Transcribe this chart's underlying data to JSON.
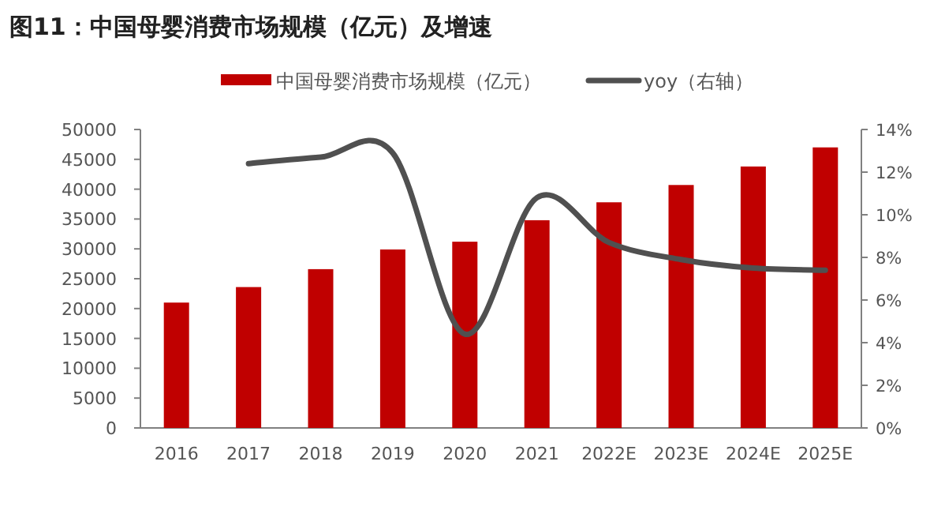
{
  "chart_data": {
    "type": "bar",
    "title": "图11：中国母婴消费市场规模（亿元）及增速",
    "categories": [
      "2016",
      "2017",
      "2018",
      "2019",
      "2020",
      "2021",
      "2022E",
      "2023E",
      "2024E",
      "2025E"
    ],
    "series": [
      {
        "name": "中国母婴消费市场规模（亿元）",
        "color": "#c00000",
        "values": [
          21000,
          23600,
          26600,
          29900,
          31200,
          34800,
          37800,
          40700,
          43800,
          47000
        ]
      },
      {
        "name": "yoy（右轴）",
        "type": "line",
        "axis": "y2",
        "color": "#505050",
        "values": [
          null,
          12.4,
          12.7,
          12.9,
          4.4,
          10.8,
          8.7,
          7.9,
          7.5,
          7.4
        ]
      }
    ],
    "ylim": [
      0,
      50000
    ],
    "yticks": [
      0,
      5000,
      10000,
      15000,
      20000,
      25000,
      30000,
      35000,
      40000,
      45000,
      50000
    ],
    "y2lim": [
      0,
      14
    ],
    "y2ticks": [
      {
        "value": 0,
        "label": "0%"
      },
      {
        "value": 2,
        "label": "2%"
      },
      {
        "value": 4,
        "label": "4%"
      },
      {
        "value": 6,
        "label": "6%"
      },
      {
        "value": 8,
        "label": "8%"
      },
      {
        "value": 10,
        "label": "10%"
      },
      {
        "value": 12,
        "label": "12%"
      },
      {
        "value": 14,
        "label": "14%"
      }
    ],
    "legend": "top"
  }
}
